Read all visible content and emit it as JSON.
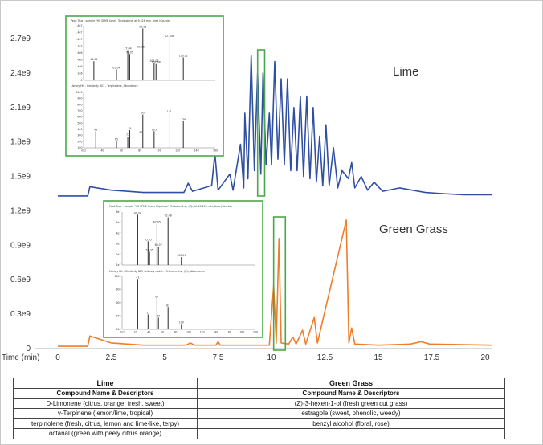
{
  "chart_data": {
    "type": "line",
    "x_label": "Time (min)",
    "x_ticks": [
      "0",
      "2.5",
      "5",
      "7.5",
      "10",
      "12.5",
      "15",
      "17.5",
      "20"
    ],
    "y_ticks": [
      "0",
      "0.3e9",
      "0.6e9",
      "0.9e9",
      "1.2e9",
      "1.5e9",
      "1.8e9",
      "2.1e9",
      "2.4e9",
      "2.7e9"
    ],
    "xlim": [
      0,
      20.4
    ],
    "ylim": [
      0,
      2850000000.0
    ],
    "colors": {
      "lime": "#2f4fa3",
      "green_grass": "#f07d2a",
      "inset_border": "#4aa84a"
    },
    "series": [
      {
        "name": "Lime",
        "baseline": 1320000000.0,
        "points": [
          [
            0,
            1330000000.0
          ],
          [
            1.4,
            1330000000.0
          ],
          [
            1.5,
            1410000000.0
          ],
          [
            2.5,
            1380000000.0
          ],
          [
            4.0,
            1360000000.0
          ],
          [
            5.9,
            1360000000.0
          ],
          [
            6.1,
            1440000000.0
          ],
          [
            6.3,
            1370000000.0
          ],
          [
            7.2,
            1420000000.0
          ],
          [
            7.35,
            1700000000.0
          ],
          [
            7.5,
            1380000000.0
          ],
          [
            8.05,
            1520000000.0
          ],
          [
            8.2,
            1380000000.0
          ],
          [
            8.55,
            1780000000.0
          ],
          [
            8.7,
            1400000000.0
          ],
          [
            8.75,
            2050000000.0
          ],
          [
            8.9,
            1480000000.0
          ],
          [
            9.05,
            2550000000.0
          ],
          [
            9.2,
            1550000000.0
          ],
          [
            9.35,
            2400000000.0
          ],
          [
            9.5,
            1520000000.0
          ],
          [
            9.6,
            2400000000.0
          ],
          [
            9.75,
            1600000000.0
          ],
          [
            9.9,
            2050000000.0
          ],
          [
            10.0,
            1600000000.0
          ],
          [
            10.15,
            2500000000.0
          ],
          [
            10.3,
            1650000000.0
          ],
          [
            10.45,
            2350000000.0
          ],
          [
            10.6,
            1600000000.0
          ],
          [
            10.75,
            2350000000.0
          ],
          [
            10.9,
            1550000000.0
          ],
          [
            11.05,
            2100000000.0
          ],
          [
            11.2,
            1550000000.0
          ],
          [
            11.35,
            2200000000.0
          ],
          [
            11.5,
            1500000000.0
          ],
          [
            11.65,
            2200000000.0
          ],
          [
            11.8,
            1480000000.0
          ],
          [
            11.95,
            2100000000.0
          ],
          [
            12.1,
            1450000000.0
          ],
          [
            12.25,
            1850000000.0
          ],
          [
            12.4,
            1420000000.0
          ],
          [
            12.55,
            1950000000.0
          ],
          [
            12.7,
            1420000000.0
          ],
          [
            12.9,
            1750000000.0
          ],
          [
            13.1,
            1400000000.0
          ],
          [
            13.3,
            1550000000.0
          ],
          [
            13.6,
            1480000000.0
          ],
          [
            13.75,
            1620000000.0
          ],
          [
            13.9,
            1400000000.0
          ],
          [
            14.2,
            1500000000.0
          ],
          [
            14.5,
            1380000000.0
          ],
          [
            14.8,
            1450000000.0
          ],
          [
            15.2,
            1370000000.0
          ],
          [
            16.0,
            1400000000.0
          ],
          [
            17.2,
            1360000000.0
          ],
          [
            18.0,
            1350000000.0
          ],
          [
            19.0,
            1340000000.0
          ],
          [
            20.3,
            1340000000.0
          ]
        ]
      },
      {
        "name": "Green Grass",
        "baseline": 20000000.0,
        "points": [
          [
            0,
            20000000.0
          ],
          [
            1.4,
            20000000.0
          ],
          [
            1.5,
            110000000.0
          ],
          [
            2.5,
            50000000.0
          ],
          [
            4.0,
            30000000.0
          ],
          [
            6.0,
            30000000.0
          ],
          [
            6.2,
            50000000.0
          ],
          [
            6.4,
            30000000.0
          ],
          [
            7.4,
            30000000.0
          ],
          [
            7.5,
            60000000.0
          ],
          [
            7.6,
            30000000.0
          ],
          [
            9.9,
            30000000.0
          ],
          [
            10.1,
            550000000.0
          ],
          [
            10.22,
            50000000.0
          ],
          [
            10.35,
            960000000.0
          ],
          [
            10.45,
            50000000.0
          ],
          [
            10.8,
            40000000.0
          ],
          [
            11.0,
            100000000.0
          ],
          [
            11.15,
            40000000.0
          ],
          [
            11.45,
            160000000.0
          ],
          [
            11.6,
            40000000.0
          ],
          [
            12.0,
            270000000.0
          ],
          [
            12.15,
            50000000.0
          ],
          [
            13.5,
            1120000000.0
          ],
          [
            13.62,
            50000000.0
          ],
          [
            13.75,
            180000000.0
          ],
          [
            13.9,
            40000000.0
          ],
          [
            15.0,
            30000000.0
          ],
          [
            16.5,
            40000000.0
          ],
          [
            17.0,
            60000000.0
          ],
          [
            17.4,
            40000000.0
          ],
          [
            20.3,
            30000000.0
          ]
        ]
      }
    ],
    "highlight_boxes_x": [
      [
        9.35,
        9.68
      ],
      [
        10.1,
        10.65
      ]
    ]
  },
  "labels": {
    "lime": "Lime",
    "green_grass": "Green Grass"
  },
  "insets": {
    "lime": {
      "top_title": "Peak True - sample \"HS SPME Lime\", Terpinolene, at 9.526 min, Area (Counts)",
      "bottom_title": "Library Hit - Similarity 907 - Terpinolene, Abundance",
      "top_y_ticks": [
        "1.6e7",
        "1.4e7",
        "1.2e7",
        "1e7",
        "8e6",
        "6e6",
        "4e6",
        "2e6",
        "0"
      ],
      "bottom_y_ticks": [
        "1000",
        "900",
        "800",
        "700",
        "600",
        "500",
        "400",
        "300",
        "200",
        "100"
      ],
      "top_peaks": [
        {
          "label": "93.06",
          "m": 93,
          "h": 0.95
        },
        {
          "label": "121.08",
          "m": 121,
          "h": 0.78
        },
        {
          "label": "136.12",
          "m": 136,
          "h": 0.42
        },
        {
          "label": "77.04",
          "m": 77,
          "h": 0.55
        },
        {
          "label": "79.05",
          "m": 79,
          "h": 0.48
        },
        {
          "label": "91.05",
          "m": 91,
          "h": 0.58
        },
        {
          "label": "105.06",
          "m": 105,
          "h": 0.32
        },
        {
          "label": "107.08",
          "m": 107,
          "h": 0.3
        },
        {
          "label": "41.04",
          "m": 41,
          "h": 0.35
        },
        {
          "label": "65.04",
          "m": 65,
          "h": 0.2
        }
      ],
      "bottom_peaks": [
        {
          "label": "93",
          "m": 93,
          "h": 0.6
        },
        {
          "label": "121",
          "m": 121,
          "h": 0.62
        },
        {
          "label": "136",
          "m": 136,
          "h": 0.48
        },
        {
          "label": "105",
          "m": 105,
          "h": 0.3
        },
        {
          "label": "91",
          "m": 91,
          "h": 0.25
        },
        {
          "label": "79",
          "m": 79,
          "h": 0.32
        },
        {
          "label": "77",
          "m": 77,
          "h": 0.2
        },
        {
          "label": "43",
          "m": 43,
          "h": 0.3
        },
        {
          "label": "65",
          "m": 65,
          "h": 0.12
        }
      ],
      "x_ticks": [
        "m/z",
        "40",
        "60",
        "80",
        "100",
        "120",
        "140",
        "160"
      ]
    },
    "green_grass": {
      "top_title": "Peak True - sample \"HS SPME Grass Clippings\", 3-Hexen-1-ol, (Z)-, at 10.293 min, Area (Counts)",
      "bottom_title": "Library Hit - Similarity 823 - Library match - 3-Hexen-1-ol, (Z)-, Abundance",
      "top_y_ticks": [
        "6e7",
        "5e7",
        "4e7",
        "3e7",
        "2e7",
        "1e7"
      ],
      "bottom_y_ticks": [
        "1000",
        "800",
        "600",
        "400",
        "200"
      ],
      "top_peaks": [
        {
          "label": "41.04",
          "m": 41,
          "h": 0.95
        },
        {
          "label": "67.05",
          "m": 67,
          "h": 0.78
        },
        {
          "label": "82.08",
          "m": 82,
          "h": 0.9
        },
        {
          "label": "55.05",
          "m": 55,
          "h": 0.45
        },
        {
          "label": "69.07",
          "m": 69,
          "h": 0.35
        },
        {
          "label": "100.09",
          "m": 100,
          "h": 0.15
        },
        {
          "label": "57.05",
          "m": 57,
          "h": 0.25
        }
      ],
      "bottom_peaks": [
        {
          "label": "41",
          "m": 41,
          "h": 0.95
        },
        {
          "label": "67",
          "m": 67,
          "h": 0.58
        },
        {
          "label": "82",
          "m": 82,
          "h": 0.42
        },
        {
          "label": "55",
          "m": 55,
          "h": 0.28
        },
        {
          "label": "69",
          "m": 69,
          "h": 0.22
        },
        {
          "label": "100",
          "m": 100,
          "h": 0.1
        }
      ],
      "x_ticks": [
        "m/z",
        "20",
        "40",
        "60",
        "80",
        "100",
        "120",
        "140",
        "160",
        "180",
        "200"
      ]
    }
  },
  "table": {
    "lime_header": "Lime",
    "grass_header": "Green Grass",
    "sub_header": "Compound Name & Descriptors",
    "rows": [
      {
        "lime": "D-Limonene (citrus, orange, fresh, sweet)",
        "grass": "(Z)-3-hexen-1-ol (fresh green cut grass)"
      },
      {
        "lime": "γ-Terpinene (lemon/lime, tropical)",
        "grass": "estragole (sweet, phenolic, weedy)"
      },
      {
        "lime": "terpinolene (fresh, citrus, lemon and lime-like, terpy)",
        "grass": "benzyl alcohol (floral, rose)"
      },
      {
        "lime": "octanal (green with peely citrus orange)",
        "grass": ""
      }
    ]
  }
}
